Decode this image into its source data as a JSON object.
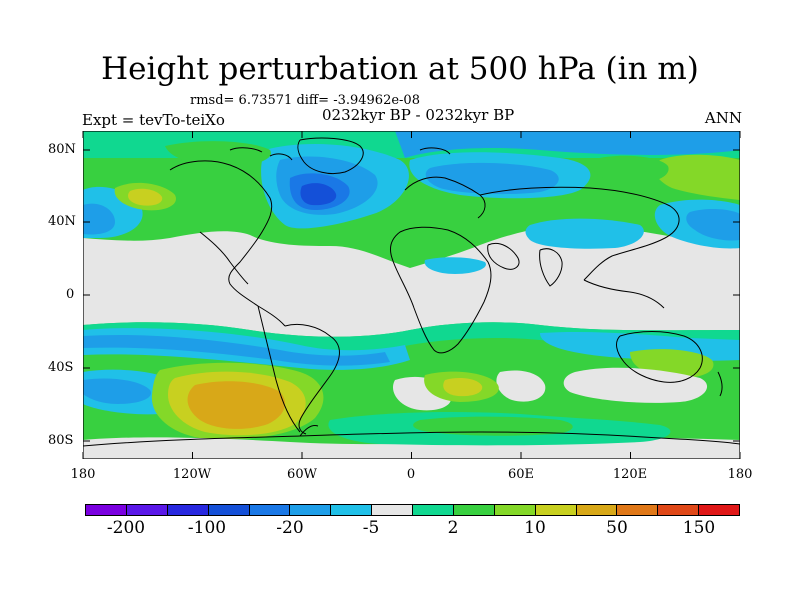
{
  "title": "Height perturbation at 500 hPa (in m)",
  "stats": "rmsd= 6.73571 diff= -3.94962e-08",
  "experiment": "Expt = tevTo-teiXo",
  "period": "0232kyr BP - 0232kyr BP",
  "season": "ANN",
  "lat_axis": {
    "labels": [
      "80N",
      "40N",
      "0",
      "40S",
      "80S"
    ],
    "values": [
      80,
      40,
      0,
      -40,
      -80
    ]
  },
  "lon_axis": {
    "labels": [
      "180",
      "120W",
      "60W",
      "0",
      "60E",
      "120E",
      "180"
    ],
    "values": [
      -180,
      -120,
      -60,
      0,
      60,
      120,
      180
    ]
  },
  "colorbar": {
    "colors": [
      "#7a00e0",
      "#5a18e8",
      "#2828e0",
      "#1450d8",
      "#1a78e6",
      "#1e9ee8",
      "#20c0e8",
      "#e6e6e6",
      "#10d890",
      "#38d040",
      "#84d828",
      "#c8d020",
      "#d8a818",
      "#e07818",
      "#e04818",
      "#e01818"
    ],
    "labels": [
      "-200",
      "-100",
      "-20",
      "-5",
      "2",
      "10",
      "50",
      "150"
    ]
  },
  "field_colors": {
    "neutral": "#e6e6e6",
    "light_blue": "#20c0e8",
    "mid_blue": "#1e9ee8",
    "blue": "#1a78e6",
    "dark_blue": "#1450d8",
    "teal": "#10d890",
    "green": "#38d040",
    "yellow_green": "#84d828",
    "yellow": "#c8d020",
    "ochre": "#d8a818"
  }
}
